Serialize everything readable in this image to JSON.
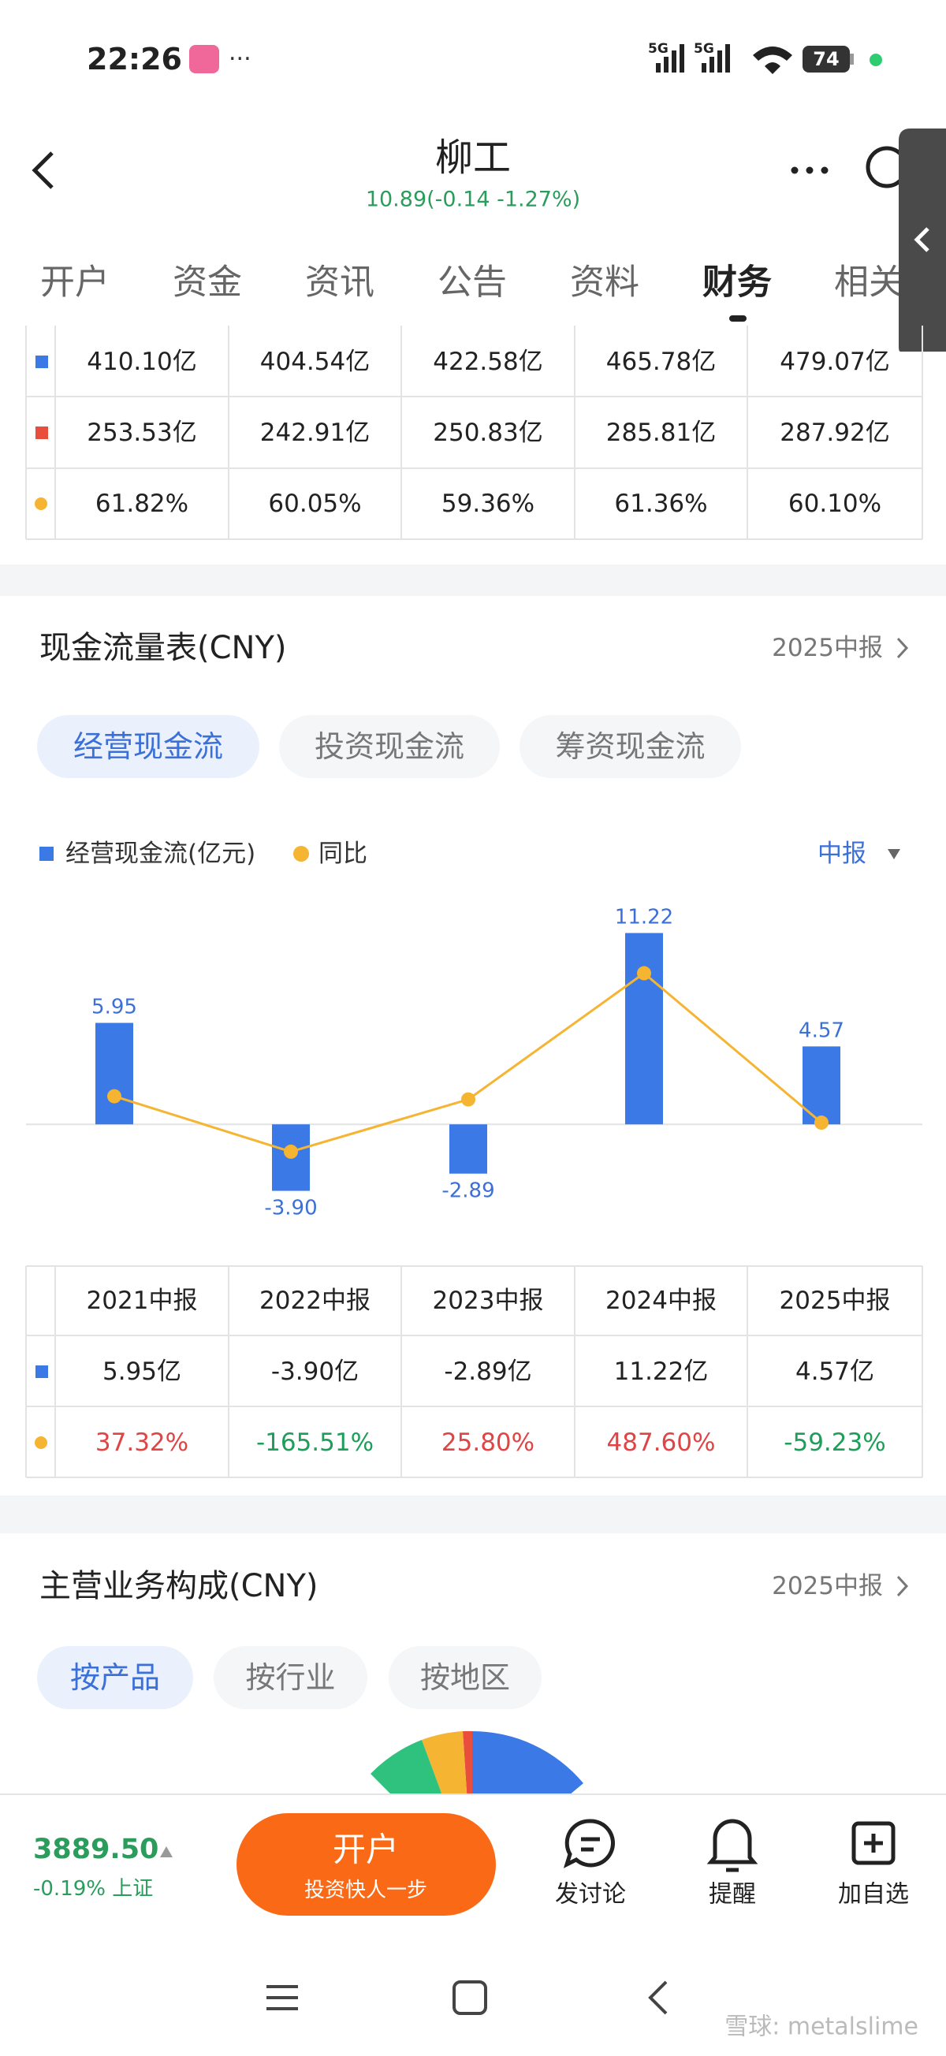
{
  "status_bar": {
    "time": "22:26",
    "network": [
      "5G",
      "5G"
    ],
    "battery": "74"
  },
  "header": {
    "title": "柳工",
    "quote": "10.89(-0.14 -1.27%)"
  },
  "tabs": [
    "开户",
    "资金",
    "资讯",
    "公告",
    "资料",
    "财务",
    "相关"
  ],
  "balance_table": {
    "rows": [
      [
        "410.10亿",
        "404.54亿",
        "422.58亿",
        "465.78亿",
        "479.07亿"
      ],
      [
        "253.53亿",
        "242.91亿",
        "250.83亿",
        "285.81亿",
        "287.92亿"
      ],
      [
        "61.82%",
        "60.05%",
        "59.36%",
        "61.36%",
        "60.10%"
      ]
    ]
  },
  "cashflow": {
    "title": "现金流量表(CNY)",
    "period": "2025中报",
    "subtabs": [
      "经营现金流",
      "投资现金流",
      "筹资现金流"
    ],
    "period_selector": "中报",
    "chart_data": {
      "type": "bar",
      "categories": [
        "2021中报",
        "2022中报",
        "2023中报",
        "2024中报",
        "2025中报"
      ],
      "series": [
        {
          "name": "经营现金流(亿元)",
          "color": "#3b7ae6",
          "values": [
            5.95,
            -3.9,
            -2.89,
            11.22,
            4.57
          ],
          "value_labels": [
            "5.95",
            "-3.90",
            "-2.89",
            "11.22",
            "4.57"
          ]
        },
        {
          "name": "同比",
          "type": "line",
          "color": "#f5b431",
          "axis": "y2",
          "values": [
            37.32,
            -165.51,
            25.8,
            487.6,
            -59.23
          ]
        }
      ],
      "ylim": [
        -6,
        13
      ],
      "y2lim": [
        -440,
        746
      ]
    },
    "table": {
      "rows": [
        [
          "5.95亿",
          "-3.90亿",
          "-2.89亿",
          "11.22亿",
          "4.57亿"
        ],
        [
          "37.32%",
          "-165.51%",
          "25.80%",
          "487.60%",
          "-59.23%"
        ]
      ]
    }
  },
  "business": {
    "title": "主营业务构成(CNY)",
    "period": "2025中报",
    "subtabs": [
      "按产品",
      "按行业",
      "按地区"
    ]
  },
  "bottom_bar": {
    "index_value": "3889.50",
    "index_change": "-0.19% 上证",
    "open_button": "开户",
    "open_button_subtitle": "投资快人一步",
    "actions": [
      "发讨论",
      "提醒",
      "加自选"
    ]
  },
  "watermark": "雪球: metalslime"
}
